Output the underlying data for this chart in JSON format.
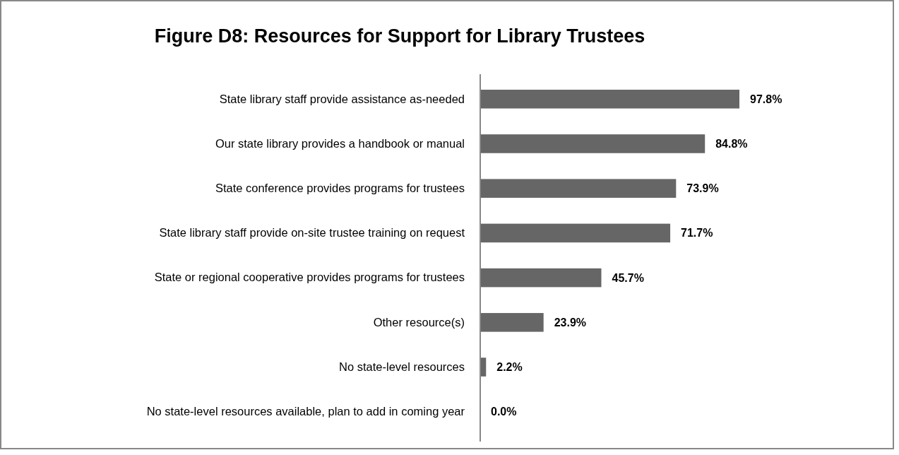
{
  "chart_data": {
    "type": "bar",
    "orientation": "horizontal",
    "title": "Figure D8: Resources for Support for Library Trustees",
    "categories": [
      "State library staff provide assistance as-needed",
      "Our state library provides a handbook or manual",
      "State conference provides programs for trustees",
      "State library staff provide on-site trustee training on request",
      "State or regional cooperative provides programs for trustees",
      "Other resource(s)",
      "No state-level resources",
      "No state-level resources available, plan to add in coming year"
    ],
    "values": [
      97.8,
      84.8,
      73.9,
      71.7,
      45.7,
      23.9,
      2.2,
      0.0
    ],
    "value_labels": [
      "97.8%",
      "84.8%",
      "73.9%",
      "71.7%",
      "45.7%",
      "23.9%",
      "2.2%",
      "0.0%"
    ],
    "color": "#666666",
    "tick_labels": "y"
  }
}
